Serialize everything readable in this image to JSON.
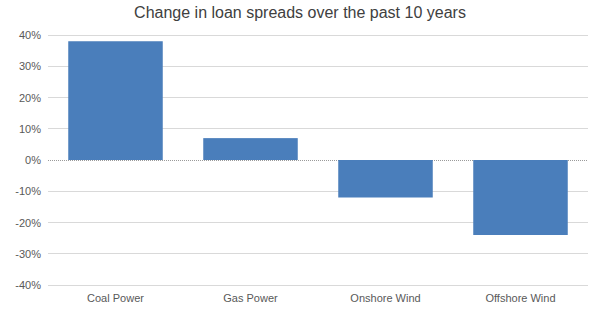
{
  "chart_data": {
    "type": "bar",
    "title": "Change in loan spreads over the past 10 years",
    "categories": [
      "Coal Power",
      "Gas Power",
      "Onshore Wind",
      "Offshore Wind"
    ],
    "values": [
      38,
      7,
      -12,
      -24
    ],
    "color": "#4a7ebb",
    "ylim": [
      -40,
      40
    ],
    "yticks": [
      {
        "value": -40,
        "label": "-40%"
      },
      {
        "value": -30,
        "label": "-30%"
      },
      {
        "value": -20,
        "label": "-20%"
      },
      {
        "value": -10,
        "label": "-10%"
      },
      {
        "value": 0,
        "label": "0%"
      },
      {
        "value": 10,
        "label": "10%"
      },
      {
        "value": 20,
        "label": "20%"
      },
      {
        "value": 30,
        "label": "30%"
      },
      {
        "value": 40,
        "label": "40%"
      }
    ],
    "grid": true
  }
}
